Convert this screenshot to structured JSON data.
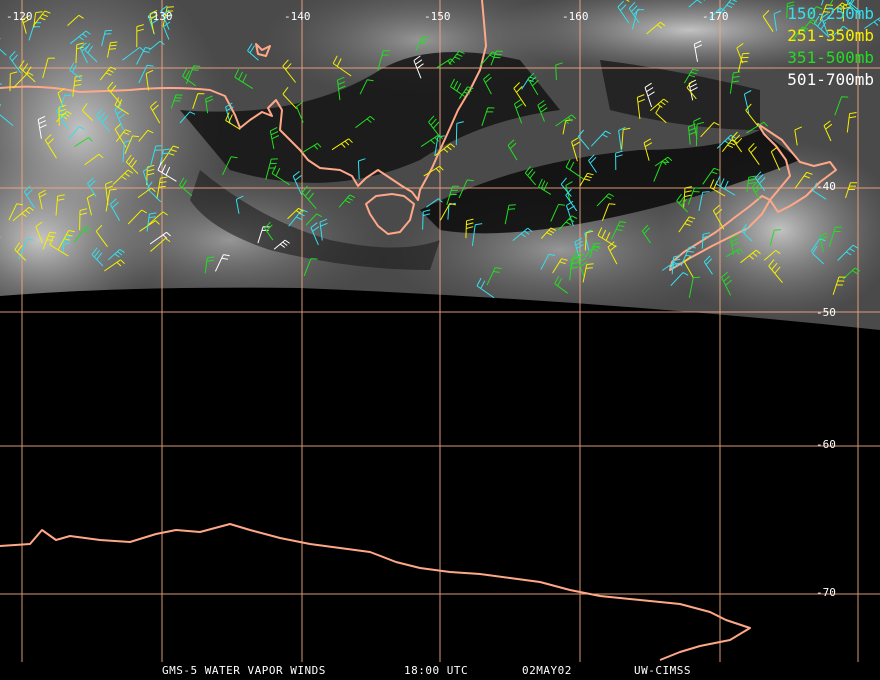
{
  "title_bar": {
    "product": "GMS-5 WATER VAPOR WINDS",
    "time": "18:00 UTC",
    "date": "02MAY02",
    "source": "UW-CIMSS"
  },
  "legend": [
    {
      "label": "150-250mb",
      "color": "#33e0ee"
    },
    {
      "label": "251-350mb",
      "color": "#f4f000"
    },
    {
      "label": "351-500mb",
      "color": "#22dd22"
    },
    {
      "label": "501-700mb",
      "color": "#ffffff"
    }
  ],
  "longitude_labels": [
    "-120",
    "-130",
    "-140",
    "-150",
    "-160",
    "-170"
  ],
  "latitude_labels": [
    "-40",
    "-50",
    "-60",
    "-70"
  ],
  "colors": {
    "background": "#000000",
    "grid": "#f0a880",
    "coast": "#ffa888"
  }
}
